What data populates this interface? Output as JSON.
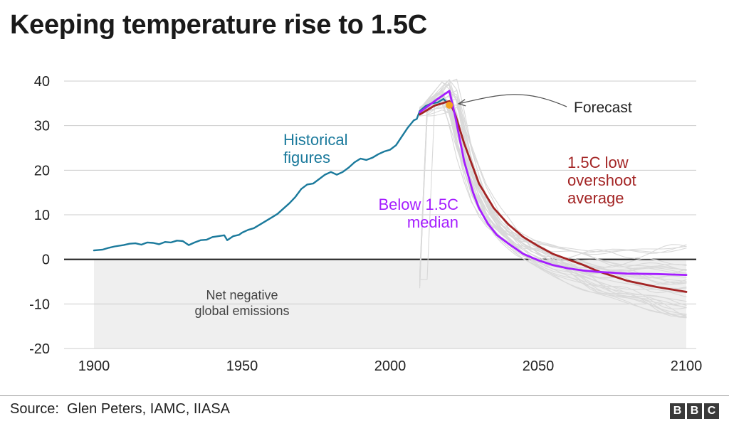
{
  "title": "Keeping temperature rise to 1.5C",
  "source": "Source:  Glen Peters, IAMC, IIASA",
  "logo": [
    "B",
    "B",
    "C"
  ],
  "colors": {
    "historical": "#1b7a9c",
    "median": "#a51eff",
    "overshoot": "#a32424",
    "scenario": "#d9d9d9",
    "forecast_dot": "#f6a21e",
    "negative_zone": "#efefef",
    "grid": "#cccccc",
    "zero_line": "#222222"
  },
  "chart_data": {
    "type": "line",
    "title": "Keeping temperature rise to 1.5C",
    "xlabel": "",
    "ylabel": "",
    "xlim": [
      1900,
      2100
    ],
    "ylim": [
      -20,
      40
    ],
    "xticks": [
      1900,
      1950,
      2000,
      2050,
      2100
    ],
    "yticks": [
      40,
      30,
      20,
      10,
      0,
      -10,
      -20
    ],
    "grid": true,
    "shaded_region": {
      "x": [
        1900,
        2100
      ],
      "y": [
        -20,
        0
      ],
      "label_lines": [
        "Net negative",
        "global emissions"
      ]
    },
    "series": [
      {
        "name": "Historical figures",
        "label_lines": [
          "Historical",
          "figures"
        ],
        "x": [
          1900,
          1903,
          1905,
          1907,
          1910,
          1912,
          1914,
          1916,
          1918,
          1920,
          1922,
          1924,
          1926,
          1928,
          1930,
          1932,
          1934,
          1936,
          1938,
          1940,
          1942,
          1944,
          1945,
          1947,
          1949,
          1950,
          1952,
          1954,
          1956,
          1958,
          1960,
          1962,
          1964,
          1966,
          1968,
          1970,
          1972,
          1974,
          1976,
          1978,
          1980,
          1982,
          1984,
          1986,
          1988,
          1990,
          1992,
          1994,
          1996,
          1998,
          2000,
          2002,
          2004,
          2006,
          2008,
          2009,
          2010,
          2012,
          2014,
          2016,
          2018,
          2020
        ],
        "y": [
          2,
          2.2,
          2.6,
          2.9,
          3.2,
          3.5,
          3.6,
          3.3,
          3.8,
          3.7,
          3.4,
          3.9,
          3.8,
          4.2,
          4.1,
          3.2,
          3.8,
          4.3,
          4.4,
          5.0,
          5.2,
          5.4,
          4.3,
          5.2,
          5.5,
          6.0,
          6.6,
          7.0,
          7.8,
          8.6,
          9.4,
          10.2,
          11.4,
          12.6,
          14.0,
          15.8,
          16.8,
          17.0,
          18.0,
          19.0,
          19.6,
          19.0,
          19.6,
          20.6,
          21.8,
          22.6,
          22.3,
          22.8,
          23.6,
          24.2,
          24.6,
          25.6,
          27.6,
          29.6,
          31.2,
          31.5,
          33.3,
          34.4,
          35.0,
          35.2,
          36.0,
          34.6
        ]
      },
      {
        "name": "Below 1.5C median",
        "label_lines": [
          "Below 1.5C",
          "median"
        ],
        "x": [
          2010,
          2015,
          2020,
          2022,
          2025,
          2028,
          2030,
          2033,
          2036,
          2040,
          2045,
          2050,
          2055,
          2060,
          2065,
          2070,
          2080,
          2090,
          2100
        ],
        "y": [
          33.0,
          35.5,
          37.8,
          32.0,
          22.0,
          15.0,
          11.5,
          8.0,
          5.5,
          3.5,
          1.2,
          -0.2,
          -1.3,
          -2.0,
          -2.5,
          -2.8,
          -3.2,
          -3.3,
          -3.5
        ]
      },
      {
        "name": "1.5C low overshoot average",
        "label_lines": [
          "1.5C low",
          "overshoot",
          "average"
        ],
        "x": [
          2010,
          2015,
          2020,
          2022,
          2025,
          2030,
          2035,
          2040,
          2045,
          2050,
          2055,
          2060,
          2065,
          2070,
          2080,
          2090,
          2100
        ],
        "y": [
          32.5,
          34.5,
          35.5,
          32.5,
          26.0,
          17.0,
          11.5,
          7.8,
          5.0,
          3.0,
          1.2,
          0.0,
          -1.2,
          -2.6,
          -4.8,
          -6.2,
          -7.3
        ]
      }
    ],
    "annotations": [
      {
        "text": "Forecast",
        "x": 2020,
        "y": 34.6
      }
    ]
  }
}
